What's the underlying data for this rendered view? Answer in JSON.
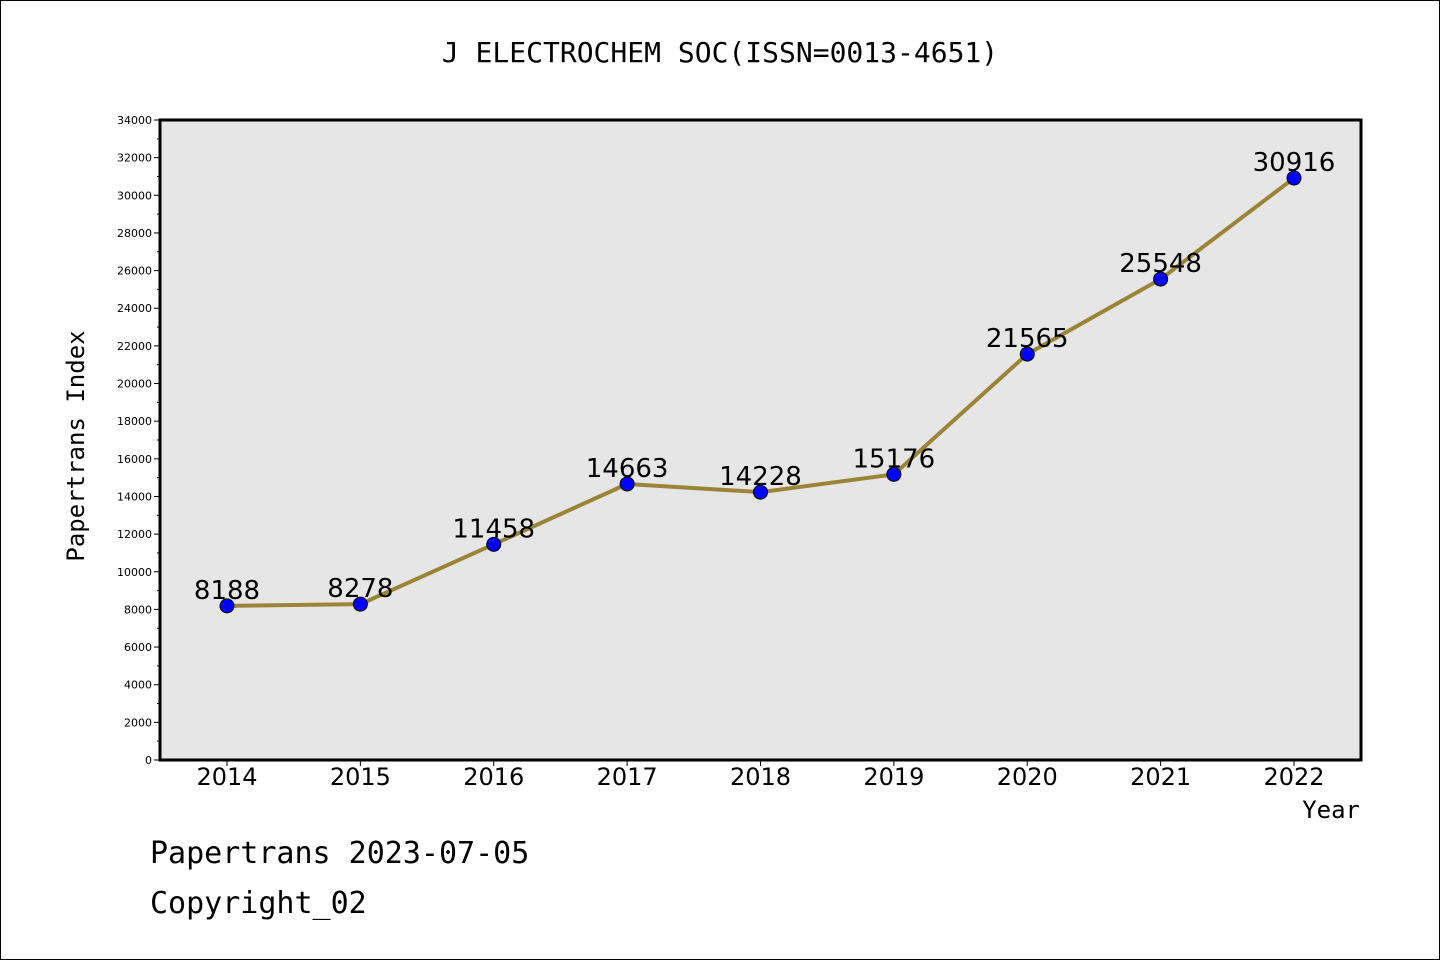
{
  "chart_data": {
    "type": "line",
    "title": "J ELECTROCHEM SOC(ISSN=0013-4651)",
    "xlabel": "Year",
    "ylabel": "Papertrans Index",
    "categories": [
      "2014",
      "2015",
      "2016",
      "2017",
      "2018",
      "2019",
      "2020",
      "2021",
      "2022"
    ],
    "series": [
      {
        "values": [
          8188,
          8278,
          11458,
          14663,
          14228,
          15176,
          21565,
          25548,
          30916
        ],
        "line_color": "#9a8438",
        "marker_color": "#0000ff"
      }
    ],
    "ylim": [
      0,
      34000
    ],
    "yticks": [
      0,
      2000,
      4000,
      6000,
      8000,
      10000,
      12000,
      14000,
      16000,
      18000,
      20000,
      22000,
      24000,
      26000,
      28000,
      30000,
      32000,
      34000
    ],
    "plot_background": "#e6e6e6",
    "grid": false,
    "data_labels": true
  },
  "footer": {
    "line1": "Papertrans 2023-07-05",
    "line2": "Copyright_02"
  }
}
